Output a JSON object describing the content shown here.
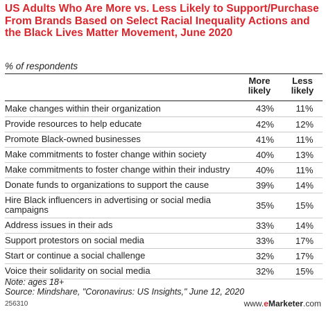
{
  "title": "US Adults Who Are More vs. Less Likely to Support/Purchase From Brands Based on Select Racial Inequality Actions and the Black Lives Matter Movement, June 2020",
  "subtitle": "% of respondents",
  "columns": {
    "more": "More likely",
    "less": "Less likely"
  },
  "chart_data": {
    "type": "table",
    "columns": [
      "More likely",
      "Less likely"
    ],
    "rows": [
      {
        "label": "Make changes within their organization",
        "more": "43%",
        "less": "11%"
      },
      {
        "label": "Provide resources to help educate",
        "more": "42%",
        "less": "12%"
      },
      {
        "label": "Promote Black-owned businesses",
        "more": "41%",
        "less": "11%"
      },
      {
        "label": "Make commitments to foster change within society",
        "more": "40%",
        "less": "13%"
      },
      {
        "label": "Make commitments to foster change within their industry",
        "more": "40%",
        "less": "11%"
      },
      {
        "label": "Donate funds to organizations to support the cause",
        "more": "39%",
        "less": "14%"
      },
      {
        "label": "Hire Black influencers in advertising or social media campaigns",
        "more": "35%",
        "less": "15%"
      },
      {
        "label": "Address issues in their ads",
        "more": "33%",
        "less": "14%"
      },
      {
        "label": "Support protestors on social media",
        "more": "33%",
        "less": "17%"
      },
      {
        "label": "Start or continue a social challenge",
        "more": "32%",
        "less": "17%"
      },
      {
        "label": "Voice their solidarity on social media",
        "more": "32%",
        "less": "15%"
      }
    ]
  },
  "note": "Note: ages 18+",
  "source": "Source: Mindshare, \"Coronavirus: US Insights,\" June 12, 2020",
  "chart_id": "256310",
  "brand": {
    "prefix": "www.",
    "e": "e",
    "name": "Marketer",
    "suffix": ".com"
  },
  "colors": {
    "title": "#d9262c",
    "rule": "#222222",
    "row_divider": "#c9c9c9"
  }
}
